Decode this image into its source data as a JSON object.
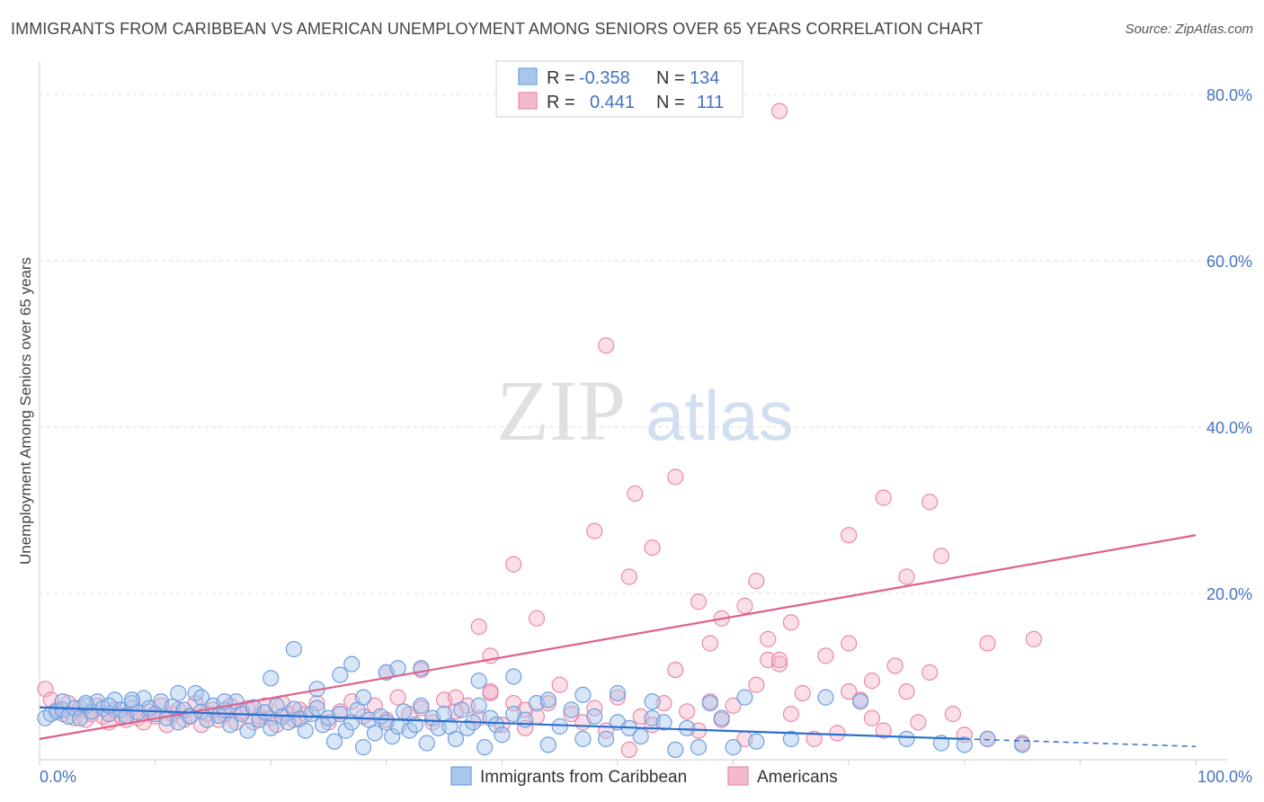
{
  "title": "IMMIGRANTS FROM CARIBBEAN VS AMERICAN UNEMPLOYMENT AMONG SENIORS OVER 65 YEARS CORRELATION CHART",
  "source": "Source: ZipAtlas.com",
  "watermark": {
    "zip": "ZIP",
    "atlas": "atlas"
  },
  "colors": {
    "blue_fill": "#a9c6ec",
    "blue_stroke": "#6f9fde",
    "blue_line": "#2a6fcf",
    "pink_fill": "#f4b9cb",
    "pink_stroke": "#e98aa8",
    "pink_line": "#e0608a",
    "tick_text": "#4472c4",
    "grid": "#dddddd"
  },
  "legend": {
    "rows": [
      {
        "r_label": "R =",
        "r_value": "-0.358",
        "n_label": "N =",
        "n_value": "134"
      },
      {
        "r_label": "R =",
        "r_value": "0.441",
        "n_label": "N =",
        "n_value": "111"
      }
    ]
  },
  "chart_data": {
    "type": "scatter",
    "xlabel": "",
    "ylabel": "Unemployment Among Seniors over 65 years",
    "xlim": [
      0,
      100
    ],
    "ylim": [
      0,
      84
    ],
    "x_tick_labels": [
      "0.0%",
      "100.0%"
    ],
    "y_ticks": [
      20,
      40,
      60,
      80
    ],
    "y_tick_labels": [
      "20.0%",
      "40.0%",
      "60.0%",
      "80.0%"
    ],
    "series": [
      {
        "name": "Immigrants from Caribbean",
        "color": "blue",
        "r": -0.358,
        "n": 134,
        "trend": {
          "x0": 0,
          "y0": 6.3,
          "x1": 80,
          "y1": 2.5,
          "dash_x1": 100,
          "dash_y1": 1.6
        },
        "points": [
          [
            0.5,
            5
          ],
          [
            1,
            5.5
          ],
          [
            1.5,
            5.8
          ],
          [
            2,
            6
          ],
          [
            2.5,
            5.2
          ],
          [
            3,
            6.2
          ],
          [
            3.5,
            5
          ],
          [
            4,
            6.5
          ],
          [
            4.5,
            5.8
          ],
          [
            5,
            7
          ],
          [
            5.5,
            6.2
          ],
          [
            6,
            5.5
          ],
          [
            6.5,
            7.2
          ],
          [
            7,
            6
          ],
          [
            7.5,
            5.3
          ],
          [
            8,
            6.8
          ],
          [
            8.5,
            5.7
          ],
          [
            9,
            7.4
          ],
          [
            9.5,
            6.2
          ],
          [
            10,
            5.5
          ],
          [
            10.5,
            7
          ],
          [
            11,
            5
          ],
          [
            11.5,
            6.4
          ],
          [
            12,
            4.5
          ],
          [
            12.5,
            6
          ],
          [
            13,
            5.2
          ],
          [
            13.5,
            8
          ],
          [
            14,
            5.8
          ],
          [
            14.5,
            4.8
          ],
          [
            15,
            6.5
          ],
          [
            15.5,
            5.3
          ],
          [
            16,
            6
          ],
          [
            16.5,
            4.2
          ],
          [
            17,
            7
          ],
          [
            17.5,
            5.5
          ],
          [
            18,
            3.5
          ],
          [
            18.5,
            6.3
          ],
          [
            19,
            4.8
          ],
          [
            19.5,
            5.7
          ],
          [
            20,
            3.8
          ],
          [
            20.5,
            6.5
          ],
          [
            21,
            5.2
          ],
          [
            21.5,
            4.5
          ],
          [
            22,
            6.1
          ],
          [
            22.5,
            4.9
          ],
          [
            23,
            3.5
          ],
          [
            23.5,
            5.5
          ],
          [
            24,
            6.2
          ],
          [
            24.5,
            4.2
          ],
          [
            25,
            5
          ],
          [
            25.5,
            2.2
          ],
          [
            26,
            5.5
          ],
          [
            26.5,
            3.5
          ],
          [
            27,
            4.5
          ],
          [
            27.5,
            6
          ],
          [
            28,
            1.5
          ],
          [
            28.5,
            4.8
          ],
          [
            29,
            3.2
          ],
          [
            29.5,
            5.2
          ],
          [
            30,
            4.5
          ],
          [
            30.5,
            2.8
          ],
          [
            31,
            4
          ],
          [
            31.5,
            5.8
          ],
          [
            32,
            3.5
          ],
          [
            32.5,
            4.2
          ],
          [
            33,
            6.5
          ],
          [
            33.5,
            2
          ],
          [
            34,
            5
          ],
          [
            34.5,
            3.8
          ],
          [
            35,
            5.5
          ],
          [
            35.5,
            4
          ],
          [
            36,
            2.5
          ],
          [
            36.5,
            6
          ],
          [
            37,
            3.8
          ],
          [
            37.5,
            4.5
          ],
          [
            38,
            6.5
          ],
          [
            38.5,
            1.5
          ],
          [
            39,
            5
          ],
          [
            39.5,
            4.2
          ],
          [
            40,
            3
          ],
          [
            41,
            5.5
          ],
          [
            42,
            4.8
          ],
          [
            43,
            6.8
          ],
          [
            44,
            1.8
          ],
          [
            45,
            4
          ],
          [
            46,
            6
          ],
          [
            47,
            2.5
          ],
          [
            48,
            5.2
          ],
          [
            49,
            2.5
          ],
          [
            50,
            4.5
          ],
          [
            51,
            3.8
          ],
          [
            52,
            2.8
          ],
          [
            53,
            5
          ],
          [
            54,
            4.5
          ],
          [
            55,
            1.2
          ],
          [
            56,
            3.8
          ],
          [
            57,
            1.5
          ],
          [
            58,
            6.8
          ],
          [
            59,
            5
          ],
          [
            60,
            1.5
          ],
          [
            61,
            7.5
          ],
          [
            2,
            7
          ],
          [
            4,
            6.8
          ],
          [
            6,
            6.5
          ],
          [
            8,
            7.2
          ],
          [
            12,
            8
          ],
          [
            14,
            7.5
          ],
          [
            16,
            7
          ],
          [
            20,
            9.8
          ],
          [
            22,
            13.3
          ],
          [
            24,
            8.5
          ],
          [
            26,
            10.2
          ],
          [
            27,
            11.5
          ],
          [
            28,
            7.5
          ],
          [
            30,
            10.5
          ],
          [
            31,
            11
          ],
          [
            33,
            11
          ],
          [
            38,
            9.5
          ],
          [
            41,
            10
          ],
          [
            44,
            7.2
          ],
          [
            47,
            7.8
          ],
          [
            50,
            8
          ],
          [
            53,
            7
          ],
          [
            62,
            2.2
          ],
          [
            65,
            2.5
          ],
          [
            68,
            7.5
          ],
          [
            71,
            7
          ],
          [
            75,
            2.5
          ],
          [
            78,
            2
          ],
          [
            80,
            1.8
          ],
          [
            82,
            2.5
          ],
          [
            85,
            1.8
          ]
        ]
      },
      {
        "name": "Americans",
        "color": "pink",
        "r": 0.441,
        "n": 111,
        "trend": {
          "x0": 0,
          "y0": 2.5,
          "x1": 100,
          "y1": 27
        },
        "points": [
          [
            0.5,
            8.5
          ],
          [
            1,
            7.2
          ],
          [
            1.5,
            6
          ],
          [
            2,
            5.5
          ],
          [
            2.5,
            6.8
          ],
          [
            3,
            5
          ],
          [
            3.5,
            6.2
          ],
          [
            4,
            4.8
          ],
          [
            4.5,
            5.5
          ],
          [
            5,
            6.5
          ],
          [
            5.5,
            5.2
          ],
          [
            6,
            4.5
          ],
          [
            6.5,
            6
          ],
          [
            7,
            5.3
          ],
          [
            7.5,
            4.8
          ],
          [
            8,
            6.2
          ],
          [
            8.5,
            5
          ],
          [
            9,
            4.5
          ],
          [
            9.5,
            5.8
          ],
          [
            10,
            5.2
          ],
          [
            10.5,
            6.5
          ],
          [
            11,
            4.2
          ],
          [
            11.5,
            5.5
          ],
          [
            12,
            6
          ],
          [
            12.5,
            4.8
          ],
          [
            13,
            5.3
          ],
          [
            13.5,
            6.8
          ],
          [
            14,
            4.2
          ],
          [
            14.5,
            5.5
          ],
          [
            15,
            6
          ],
          [
            15.5,
            4.8
          ],
          [
            16,
            5.5
          ],
          [
            16.5,
            6.5
          ],
          [
            17,
            4.5
          ],
          [
            17.5,
            5.8
          ],
          [
            18,
            6.2
          ],
          [
            18.5,
            4.5
          ],
          [
            19,
            5.2
          ],
          [
            19.5,
            6.5
          ],
          [
            20,
            5
          ],
          [
            20.5,
            4.2
          ],
          [
            21,
            6.8
          ],
          [
            21.5,
            5.5
          ],
          [
            22,
            4.8
          ],
          [
            22.5,
            6
          ],
          [
            23,
            5.5
          ],
          [
            24,
            6.8
          ],
          [
            25,
            4.5
          ],
          [
            26,
            5.8
          ],
          [
            27,
            7
          ],
          [
            28,
            5.2
          ],
          [
            29,
            6.5
          ],
          [
            30,
            4.8
          ],
          [
            31,
            7.5
          ],
          [
            32,
            5.5
          ],
          [
            33,
            6.2
          ],
          [
            34,
            4.5
          ],
          [
            35,
            7.2
          ],
          [
            36,
            5.8
          ],
          [
            37,
            6.5
          ],
          [
            38,
            5
          ],
          [
            39,
            8
          ],
          [
            40,
            4.2
          ],
          [
            41,
            6.8
          ],
          [
            42,
            3.8
          ],
          [
            43,
            5.2
          ],
          [
            44,
            6.8
          ],
          [
            45,
            9
          ],
          [
            46,
            5.5
          ],
          [
            47,
            4.5
          ],
          [
            48,
            6.2
          ],
          [
            49,
            3.5
          ],
          [
            50,
            7.5
          ],
          [
            51,
            1.2
          ],
          [
            52,
            5.2
          ],
          [
            53,
            4.2
          ],
          [
            54,
            6.8
          ],
          [
            55,
            10.8
          ],
          [
            56,
            5.8
          ],
          [
            57,
            3.5
          ],
          [
            58,
            7
          ],
          [
            59,
            4.8
          ],
          [
            60,
            6.5
          ],
          [
            61,
            2.5
          ],
          [
            62,
            9
          ],
          [
            63,
            12
          ],
          [
            64,
            11.5
          ],
          [
            65,
            5.5
          ],
          [
            66,
            8
          ],
          [
            67,
            2.5
          ],
          [
            68,
            12.5
          ],
          [
            69,
            3.2
          ],
          [
            70,
            14
          ],
          [
            71,
            7.2
          ],
          [
            72,
            9.5
          ],
          [
            73,
            3.5
          ],
          [
            74,
            11.3
          ],
          [
            75,
            8.2
          ],
          [
            76,
            4.5
          ],
          [
            77,
            10.5
          ],
          [
            79,
            5.5
          ],
          [
            80,
            3
          ],
          [
            82,
            2.5
          ],
          [
            85,
            2
          ],
          [
            86,
            14.5
          ],
          [
            30,
            10.5
          ],
          [
            33,
            10.8
          ],
          [
            36,
            7.5
          ],
          [
            39,
            8.2
          ],
          [
            42,
            6
          ],
          [
            41,
            23.5
          ],
          [
            43,
            17
          ],
          [
            48,
            27.5
          ],
          [
            51,
            22
          ],
          [
            51.5,
            32
          ],
          [
            53,
            25.5
          ],
          [
            55,
            34
          ],
          [
            57,
            19
          ],
          [
            58,
            14
          ],
          [
            61,
            18.5
          ],
          [
            62,
            21.5
          ],
          [
            64,
            12
          ],
          [
            70,
            27
          ],
          [
            75,
            22
          ],
          [
            78,
            24.5
          ],
          [
            82,
            14
          ],
          [
            73,
            31.5
          ],
          [
            77,
            31
          ],
          [
            64,
            78
          ],
          [
            38,
            16
          ],
          [
            39,
            12.5
          ],
          [
            49,
            49.8
          ],
          [
            59,
            17
          ],
          [
            63,
            14.5
          ],
          [
            65,
            16.5
          ],
          [
            70,
            8.2
          ],
          [
            72,
            5
          ]
        ]
      }
    ]
  }
}
